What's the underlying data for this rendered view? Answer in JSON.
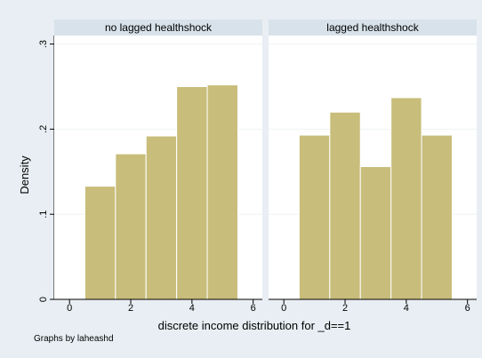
{
  "chart_data": {
    "type": "bar",
    "ylabel": "Density",
    "xlabel": "discrete income distribution for _d==1",
    "note": "Graphs by laheashd",
    "xlim": [
      -0.5,
      6.3
    ],
    "ylim": [
      0,
      0.31
    ],
    "xticks": [
      0,
      2,
      4,
      6
    ],
    "yticks": [
      0,
      0.1,
      0.2,
      0.3
    ],
    "ytick_labels": [
      "0",
      ".1",
      ".2",
      ".3"
    ],
    "grid": true,
    "bar_color": "#c8bd7a",
    "bar_edge_color": "#ffffff",
    "panels": [
      {
        "title": "no lagged healthshock",
        "bins": [
          {
            "x0": 0.5,
            "x1": 1.5,
            "value": 0.133
          },
          {
            "x0": 1.5,
            "x1": 2.5,
            "value": 0.171
          },
          {
            "x0": 2.5,
            "x1": 3.5,
            "value": 0.192
          },
          {
            "x0": 3.5,
            "x1": 4.5,
            "value": 0.25
          },
          {
            "x0": 4.5,
            "x1": 5.5,
            "value": 0.252
          }
        ]
      },
      {
        "title": "lagged healthshock",
        "bins": [
          {
            "x0": 0.5,
            "x1": 1.5,
            "value": 0.193
          },
          {
            "x0": 1.5,
            "x1": 2.5,
            "value": 0.22
          },
          {
            "x0": 2.5,
            "x1": 3.5,
            "value": 0.156
          },
          {
            "x0": 3.5,
            "x1": 4.5,
            "value": 0.237
          },
          {
            "x0": 4.5,
            "x1": 5.5,
            "value": 0.193
          }
        ]
      }
    ]
  }
}
